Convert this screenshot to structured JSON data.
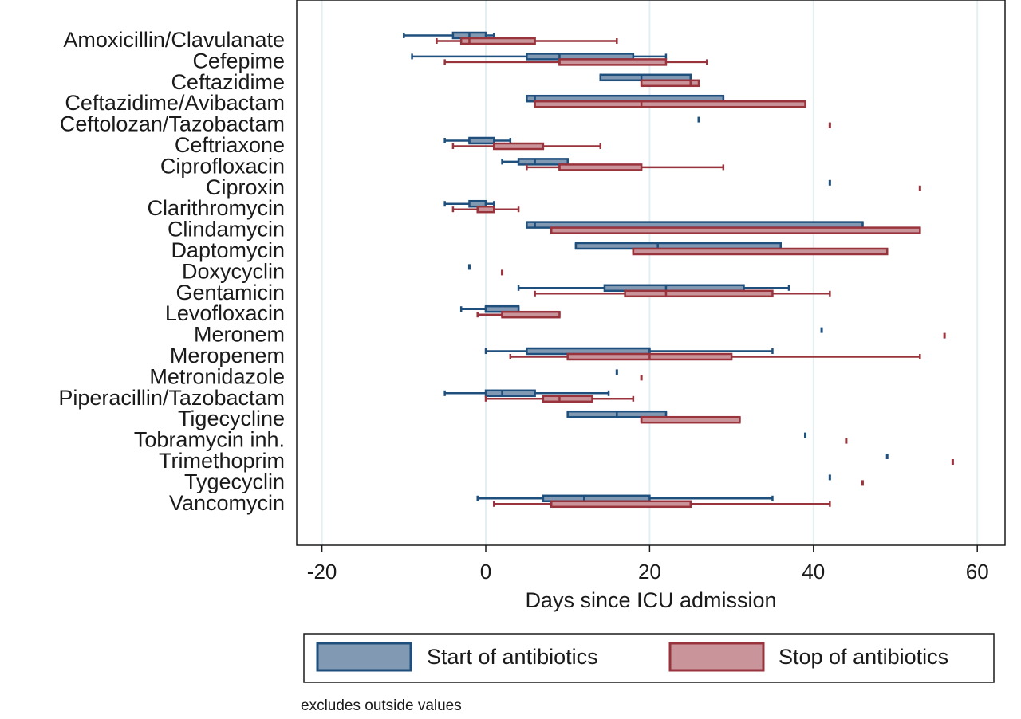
{
  "chart_data": {
    "type": "box",
    "orientation": "horizontal",
    "xlabel": "Days since ICU admission",
    "xlim": [
      -23,
      63
    ],
    "xticks": [
      -20,
      0,
      20,
      40,
      60
    ],
    "xticklabels": [
      "-20",
      "0",
      "20",
      "40",
      "60"
    ],
    "grid": true,
    "legend_position": "bottom",
    "note": "excludes outside values",
    "series": [
      {
        "name": "Start of antibiotics",
        "fill": "#8199b2",
        "stroke": "#1f4f7c"
      },
      {
        "name": "Stop of antibiotics",
        "fill": "#c9959a",
        "stroke": "#99333c"
      }
    ],
    "categories": [
      "Amoxicillin/Clavulanate",
      "Cefepime",
      "Ceftazidime",
      "Ceftazidime/Avibactam",
      "Ceftolozan/Tazobactam",
      "Ceftriaxone",
      "Ciprofloxacin",
      "Ciproxin",
      "Clarithromycin",
      "Clindamycin",
      "Daptomycin",
      "Doxycyclin",
      "Gentamicin",
      "Levofloxacin",
      "Meronem",
      "Meropenem",
      "Metronidazole",
      "Piperacillin/Tazobactam",
      "Tigecycline",
      "Tobramycin inh.",
      "Trimethoprim",
      "Tygecyclin",
      "Vancomycin"
    ],
    "start": [
      [
        -10,
        -4,
        -2,
        0,
        1
      ],
      [
        -9,
        5,
        9,
        18,
        22
      ],
      [
        14,
        14,
        19,
        25,
        25
      ],
      [
        5,
        5,
        6,
        29,
        29
      ],
      [
        26,
        26,
        26,
        26,
        26
      ],
      [
        -5,
        -2,
        -2,
        1,
        3
      ],
      [
        2,
        4,
        6,
        10,
        10
      ],
      [
        42,
        42,
        42,
        42,
        42
      ],
      [
        -5,
        -2,
        0,
        0,
        1
      ],
      [
        5,
        5,
        6,
        46,
        46
      ],
      [
        11,
        11,
        21,
        36,
        36
      ],
      [
        -2,
        -2,
        -2,
        -2,
        -2
      ],
      [
        4,
        14.5,
        22,
        31.5,
        37
      ],
      [
        -3,
        0,
        0,
        4,
        4
      ],
      [
        41,
        41,
        41,
        41,
        41
      ],
      [
        0,
        5,
        20,
        20,
        35
      ],
      [
        16,
        16,
        16,
        16,
        16
      ],
      [
        -5,
        0,
        2,
        6,
        15
      ],
      [
        10,
        10,
        16,
        22,
        22
      ],
      [
        39,
        39,
        39,
        39,
        39
      ],
      [
        49,
        49,
        49,
        49,
        49
      ],
      [
        42,
        42,
        42,
        42,
        42
      ],
      [
        -1,
        7,
        12,
        20,
        35
      ]
    ],
    "stop": [
      [
        -6,
        -3,
        -2,
        6,
        16
      ],
      [
        -5,
        9,
        9,
        22,
        27
      ],
      [
        19,
        19,
        25,
        26,
        26
      ],
      [
        6,
        6,
        19,
        39,
        39
      ],
      [
        42,
        42,
        42,
        42,
        42
      ],
      [
        -4,
        1,
        1,
        7,
        14
      ],
      [
        5,
        9,
        9,
        19,
        29
      ],
      [
        53,
        53,
        53,
        53,
        53
      ],
      [
        -4,
        -1,
        1,
        1,
        4
      ],
      [
        8,
        8,
        8,
        53,
        53
      ],
      [
        18,
        18,
        18,
        49,
        49
      ],
      [
        2,
        2,
        2,
        2,
        2
      ],
      [
        6,
        17,
        22,
        35,
        42
      ],
      [
        -1,
        2,
        2,
        9,
        9
      ],
      [
        56,
        56,
        56,
        56,
        56
      ],
      [
        3,
        10,
        20,
        30,
        53
      ],
      [
        19,
        19,
        19,
        19,
        19
      ],
      [
        0,
        7,
        9,
        13,
        18
      ],
      [
        19,
        19,
        19,
        31,
        31
      ],
      [
        44,
        44,
        44,
        44,
        44
      ],
      [
        57,
        57,
        57,
        57,
        57
      ],
      [
        46,
        46,
        46,
        46,
        46
      ],
      [
        1,
        8,
        8,
        25,
        42
      ]
    ]
  }
}
